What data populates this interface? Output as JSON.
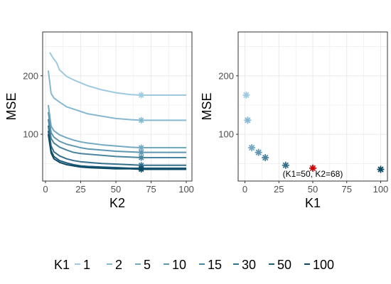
{
  "colors": {
    "panel_border": "#333333",
    "grid": "#ebebeb",
    "highlight": "#cc0000",
    "series": [
      "#9ecae1",
      "#86b8d0",
      "#74a9c4",
      "#5f96b0",
      "#4a849e",
      "#336f8c",
      "#1f5b78",
      "#0b4a64"
    ]
  },
  "legend": {
    "title": "K1",
    "items": [
      "1",
      "2",
      "5",
      "10",
      "15",
      "30",
      "50",
      "100"
    ]
  },
  "chart_data": [
    {
      "type": "line",
      "xlabel": "K2",
      "ylabel": "MSE",
      "xlim": [
        -2,
        104
      ],
      "ylim": [
        20,
        275
      ],
      "xticks": [
        0,
        25,
        50,
        75,
        100
      ],
      "yticks": [
        100,
        200
      ],
      "grid": true,
      "marker_x": 68,
      "series": [
        {
          "name": "1",
          "x": [
            3,
            5,
            8,
            10,
            15,
            20,
            25,
            30,
            40,
            50,
            60,
            68,
            80,
            100
          ],
          "y": [
            240,
            232,
            222,
            210,
            199,
            193,
            188,
            183,
            176,
            171,
            168,
            167,
            167,
            167
          ]
        },
        {
          "name": "2",
          "x": [
            2,
            4,
            6,
            10,
            15,
            20,
            25,
            30,
            40,
            50,
            60,
            68,
            80,
            100
          ],
          "y": [
            209,
            170,
            162,
            155,
            147,
            143,
            139,
            135,
            131,
            127,
            125,
            124,
            124,
            124
          ]
        },
        {
          "name": "5",
          "x": [
            2,
            4,
            6,
            10,
            15,
            20,
            25,
            30,
            40,
            50,
            60,
            68,
            80,
            100
          ],
          "y": [
            150,
            114,
            106,
            99,
            94,
            90,
            87,
            85,
            82,
            80,
            78,
            77,
            77,
            77
          ]
        },
        {
          "name": "10",
          "x": [
            2,
            4,
            6,
            10,
            15,
            20,
            25,
            30,
            40,
            50,
            60,
            68,
            80,
            100
          ],
          "y": [
            138,
            103,
            95,
            88,
            83,
            80,
            77,
            75,
            73,
            71,
            70,
            69,
            69,
            69
          ]
        },
        {
          "name": "15",
          "x": [
            2,
            4,
            6,
            10,
            15,
            20,
            25,
            30,
            40,
            50,
            60,
            68,
            80,
            100
          ],
          "y": [
            126,
            93,
            85,
            78,
            73,
            69,
            67,
            66,
            64,
            62,
            61,
            60,
            60,
            60
          ]
        },
        {
          "name": "30",
          "x": [
            2,
            4,
            6,
            10,
            15,
            20,
            25,
            30,
            40,
            50,
            60,
            68,
            80,
            100
          ],
          "y": [
            115,
            80,
            70,
            63,
            58,
            55,
            53,
            52,
            50,
            49,
            48,
            47,
            47,
            47
          ]
        },
        {
          "name": "50",
          "x": [
            2,
            4,
            6,
            10,
            15,
            20,
            25,
            30,
            40,
            50,
            60,
            68,
            80,
            100
          ],
          "y": [
            106,
            72,
            62,
            55,
            51,
            48,
            46,
            45,
            44,
            43,
            42,
            42,
            42,
            42
          ]
        },
        {
          "name": "100",
          "x": [
            2,
            4,
            6,
            10,
            15,
            20,
            25,
            30,
            40,
            50,
            60,
            68,
            80,
            100
          ],
          "y": [
            100,
            68,
            58,
            52,
            48,
            46,
            44,
            43,
            42,
            41,
            41,
            40,
            40,
            40
          ]
        }
      ]
    },
    {
      "type": "scatter",
      "xlabel": "K1",
      "ylabel": "MSE",
      "xlim": [
        -5,
        105
      ],
      "ylim": [
        20,
        275
      ],
      "xticks": [
        0,
        25,
        50,
        75,
        100
      ],
      "yticks": [
        100,
        200
      ],
      "grid": true,
      "points": [
        {
          "name": "1",
          "x": 1,
          "y": 167
        },
        {
          "name": "2",
          "x": 2,
          "y": 124
        },
        {
          "name": "5",
          "x": 5,
          "y": 77
        },
        {
          "name": "10",
          "x": 10,
          "y": 69
        },
        {
          "name": "15",
          "x": 15,
          "y": 60
        },
        {
          "name": "30",
          "x": 30,
          "y": 47
        },
        {
          "name": "50",
          "x": 50,
          "y": 42
        },
        {
          "name": "100",
          "x": 100,
          "y": 40
        }
      ],
      "highlight": {
        "x": 50,
        "y": 42
      },
      "annotation": "(K1=50, K2=68)"
    }
  ]
}
